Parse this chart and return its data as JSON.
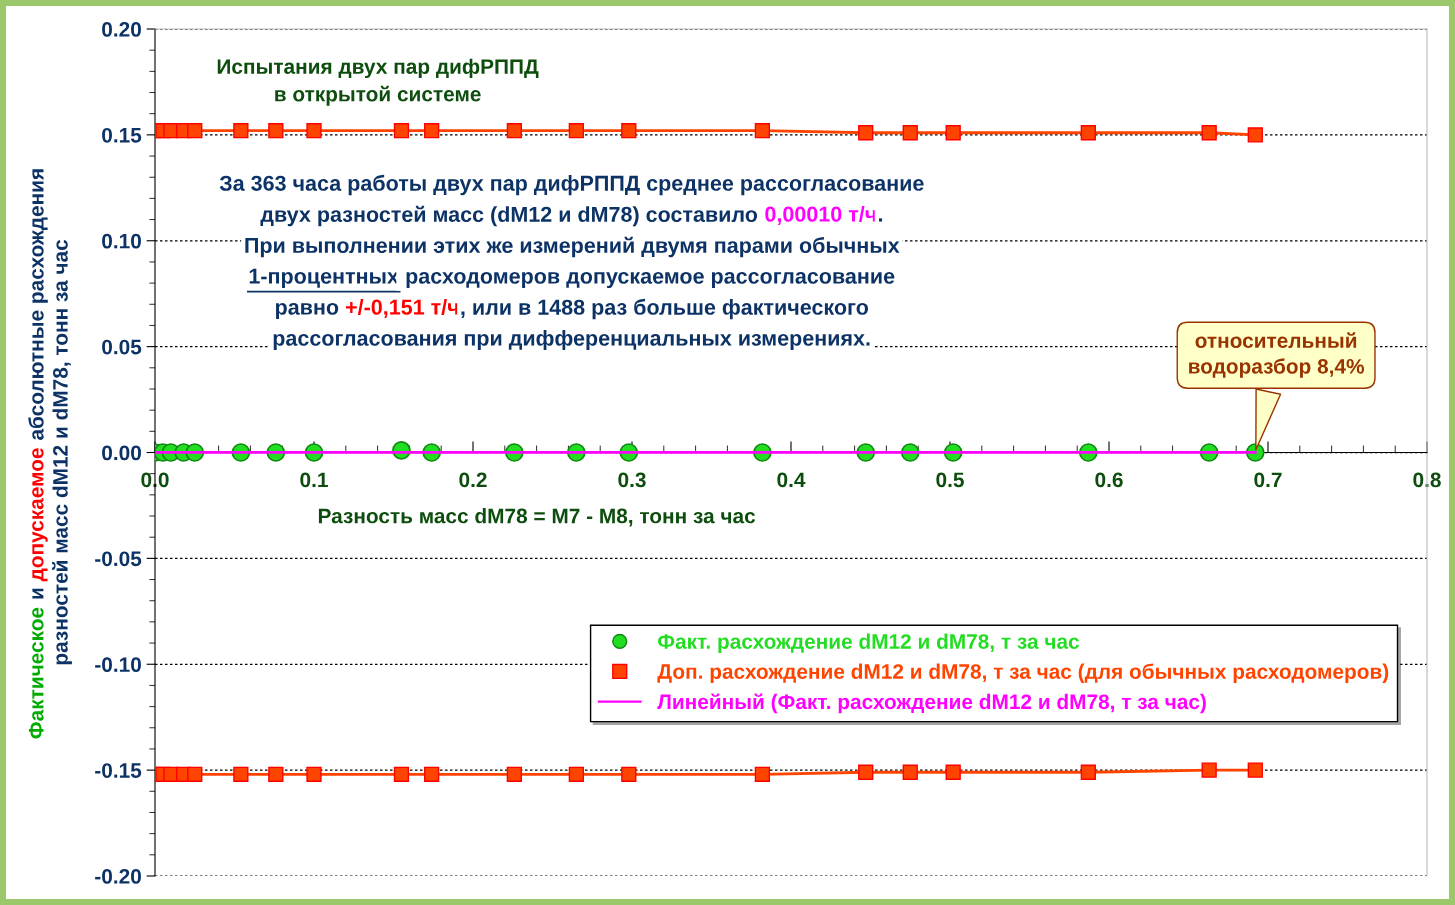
{
  "chart_data": {
    "type": "scatter",
    "title": "Испытания двух пар дифРППД\nв открытой системе",
    "xlabel": "Разность масс dM78 = M7 - M8, тонн за час",
    "ylabel": "Фактическое и допускаемое абсолютные расхождения\nразностей масс dM12 и dM78, тонн за час",
    "xlim": [
      0,
      0.8
    ],
    "xticks": [
      {
        "value": 0,
        "label": "0.0"
      },
      0.1,
      0.2,
      0.3,
      0.4,
      0.5,
      0.6,
      0.7,
      0.8
    ],
    "ylim": [
      -0.2,
      0.2
    ],
    "yticks": [
      {
        "value": -0.2,
        "label": "-0.20"
      },
      {
        "value": -0.15,
        "label": "-0.15"
      },
      {
        "value": -0.1,
        "label": "-0.10"
      },
      {
        "value": -0.05,
        "label": "-0.05"
      },
      {
        "value": 0,
        "label": "0.00"
      },
      {
        "value": 0.05,
        "label": "0.05"
      },
      {
        "value": 0.1,
        "label": "0.10"
      },
      {
        "value": 0.15,
        "label": "0.15"
      },
      {
        "value": 0.2,
        "label": "0.20"
      }
    ],
    "grid": "y",
    "legend": "bottom right",
    "series": [
      {
        "name": "Факт. расхождение dM12 и dM78, т за час",
        "marker": "circle",
        "color": "#22dd22",
        "x": [
          0.0,
          0.005,
          0.01,
          0.018,
          0.025,
          0.054,
          0.076,
          0.1,
          0.155,
          0.174,
          0.226,
          0.265,
          0.298,
          0.382,
          0.447,
          0.475,
          0.502,
          0.587,
          0.663,
          0.692
        ],
        "values": [
          0.0,
          0.0,
          0.0,
          0.0,
          0.0,
          0.0,
          0.0,
          0.0,
          0.001,
          0.0,
          0.0,
          0.0,
          0.0,
          0.0,
          0.0,
          0.0,
          0.0,
          0.0,
          0.0,
          0.0
        ]
      },
      {
        "name": "Доп. расхождение dM12 и dM78, т за час (для обычных расходомеров)",
        "type": "line",
        "marker": "square",
        "line_style": "solid",
        "color": "#ff4400",
        "x": [
          0.0,
          0.005,
          0.01,
          0.018,
          0.025,
          0.054,
          0.076,
          0.1,
          0.155,
          0.174,
          0.226,
          0.265,
          0.298,
          0.382,
          0.447,
          0.475,
          0.502,
          0.587,
          0.663,
          0.692
        ],
        "values": [
          0.152,
          0.152,
          0.152,
          0.152,
          0.152,
          0.152,
          0.152,
          0.152,
          0.152,
          0.152,
          0.152,
          0.152,
          0.152,
          0.152,
          0.151,
          0.151,
          0.151,
          0.151,
          0.151,
          0.15
        ]
      },
      {
        "type": "line",
        "marker": "square",
        "line_style": "solid",
        "color": "#ff4400",
        "x": [
          0.0,
          0.005,
          0.01,
          0.018,
          0.025,
          0.054,
          0.076,
          0.1,
          0.155,
          0.174,
          0.226,
          0.265,
          0.298,
          0.382,
          0.447,
          0.475,
          0.502,
          0.587,
          0.663,
          0.692
        ],
        "values": [
          -0.152,
          -0.152,
          -0.152,
          -0.152,
          -0.152,
          -0.152,
          -0.152,
          -0.152,
          -0.152,
          -0.152,
          -0.152,
          -0.152,
          -0.152,
          -0.152,
          -0.151,
          -0.151,
          -0.151,
          -0.151,
          -0.15,
          -0.15
        ]
      },
      {
        "name": "Линейный (Факт. расхождение dM12 и dM78, т за час)",
        "type": "line",
        "marker": "none",
        "line_style": "solid",
        "color": "#ff00ff",
        "x": [
          0.0,
          0.692
        ],
        "values": [
          0.0001,
          0.0001
        ]
      }
    ],
    "annotations": [
      "За 363 часа работы двух пар дифРППД среднее рассогласование",
      "двух разностей масс (dM12 и dM78) составило ",
      "0,00010 т/ч",
      ".",
      "При выполнении этих же измерений двумя парами обычных",
      "1-процентных",
      " расходомеров допускаемое рассогласование",
      "равно ",
      "+/-0,151 т/ч",
      ", или в 1488 раз больше фактического",
      "рассогласования при дифференциальных измерениях.",
      {
        "text": "относительный\nводоразбор 8,4%",
        "x": 0.692,
        "y": 0
      }
    ]
  }
}
